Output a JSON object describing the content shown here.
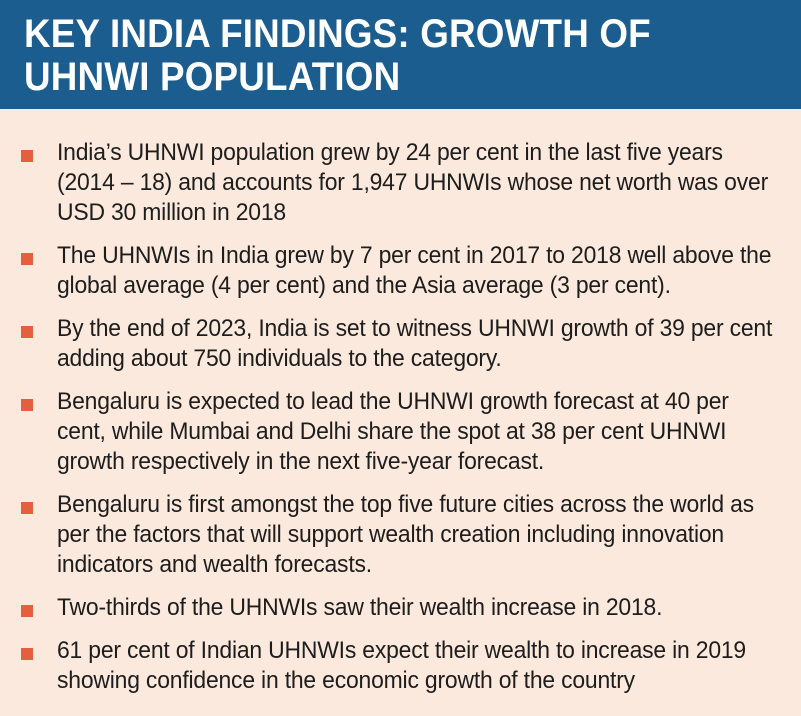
{
  "header": {
    "title": "KEY INDIA FINDINGS: GROWTH OF UHNWI POPULATION"
  },
  "colors": {
    "header_bg": "#1b5d8e",
    "page_bg": "#fbe9dd",
    "bullet": "#e35f3d",
    "text": "#1d1d1d"
  },
  "findings": [
    "India’s UHNWI population grew by 24 per cent in the last five years (2014 – 18) and accounts for 1,947 UHNWIs whose net worth was over USD 30 million in 2018",
    "The UHNWIs in India grew by 7 per cent in 2017 to 2018 well above the global average (4 per cent) and the Asia average (3 per cent).",
    "By the end of 2023, India is set to witness UHNWI growth of 39 per cent adding about 750 individuals to the category.",
    "Bengaluru is expected to lead the UHNWI growth forecast at 40 per cent, while Mumbai and Delhi share the spot at 38 per cent UHNWI growth respectively in the next five-year forecast.",
    "Bengaluru is first amongst the top five future cities across the world as per the factors that will support wealth creation including innovation indicators and wealth forecasts.",
    "Two-thirds of the UHNWIs saw their wealth increase in 2018.",
    "61 per cent of Indian UHNWIs expect their wealth to increase in 2019 showing confidence in the economic growth of the country"
  ]
}
